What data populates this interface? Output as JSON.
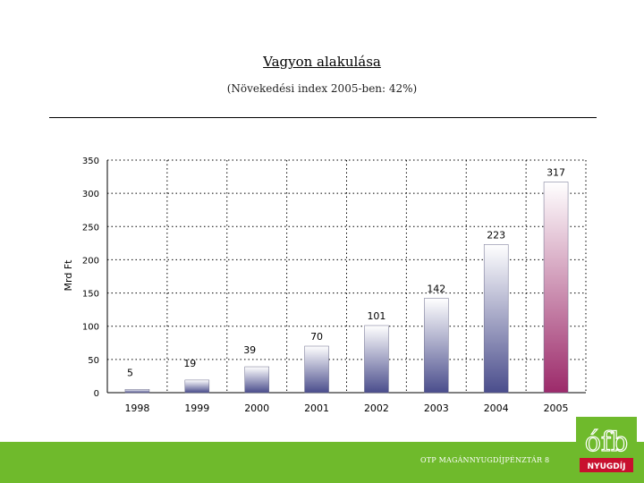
{
  "title": "Vagyon alakulása",
  "subtitle": "(Növekedési index 2005-ben: 42%)",
  "footer": {
    "text": "OTP MAGÁNNYUGDÍJPÉNZTÁR 8",
    "logo_text": "NYUGDÍJ",
    "logo_mark": "ófb",
    "bar_color": "#6fba2c"
  },
  "chart_data": {
    "type": "bar",
    "ylabel": "Mrd Ft",
    "ylim": [
      0,
      350
    ],
    "yticks": [
      0,
      50,
      100,
      150,
      200,
      250,
      300,
      350
    ],
    "grid": true,
    "categories": [
      "1998",
      "1999",
      "2000",
      "2001",
      "2002",
      "2003",
      "2004",
      "2005"
    ],
    "values": [
      5,
      19,
      39,
      70,
      101,
      142,
      223,
      317
    ],
    "data_labels": [
      "5",
      "19",
      "39",
      "70",
      "101",
      "142",
      "223",
      "317"
    ],
    "colors": {
      "bar_bottom": "#4a4d8c",
      "bar_top": "#ffffff",
      "last_bar_bottom": "#9c2a6a"
    }
  }
}
